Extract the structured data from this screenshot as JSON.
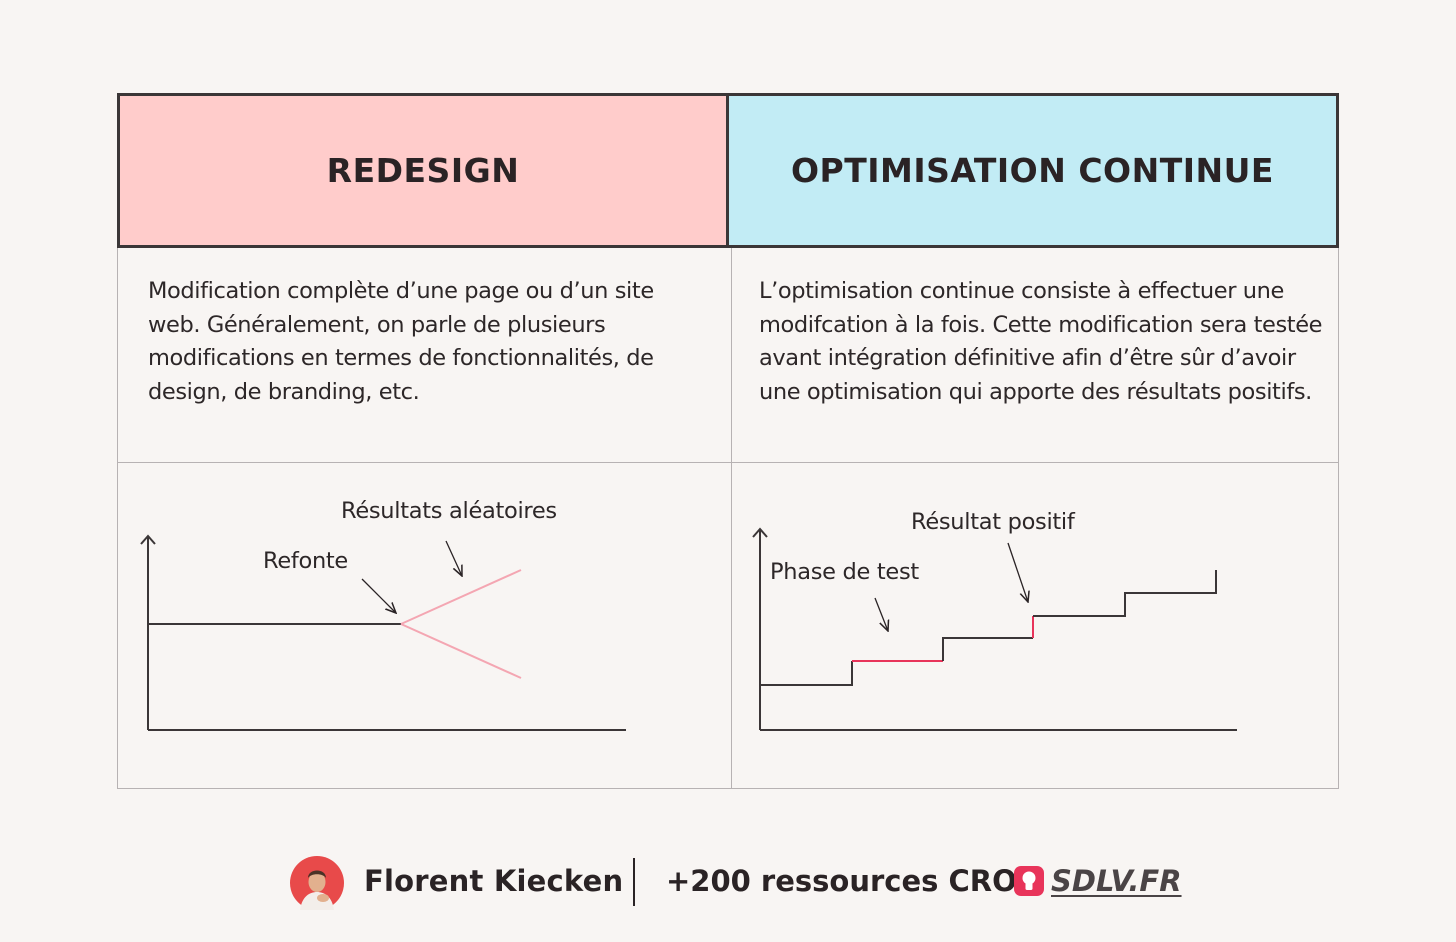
{
  "table": {
    "columns": [
      {
        "title": "REDESIGN",
        "description": "Modification complète d’une page ou d’un site web. Généralement, on parle de plusieurs modifications en termes de fonctionnalités, de design, de branding, etc.",
        "chart_labels": {
          "primary": "Refonte",
          "secondary": "Résultats aléatoires"
        }
      },
      {
        "title": "OPTIMISATION CONTINUE",
        "description": "L’optimisation continue consiste à effectuer une modifcation à la fois. Cette modification sera testée avant intégration définitive afin d’être sûr d’avoir une optimisation qui apporte des résultats positifs.",
        "chart_labels": {
          "primary": "Phase de test",
          "secondary": "Résultat positif"
        }
      }
    ]
  },
  "colors": {
    "redesign_header": "#ffcccb",
    "optimisation_header": "#c2ecf5",
    "accent_pink": "#f4a6b2",
    "accent_red": "#e8345a",
    "line": "#3b3637"
  },
  "footer": {
    "author": "Florent Kiecken",
    "resources": "+200 ressources CRO :",
    "site": "SDLV.FR"
  }
}
